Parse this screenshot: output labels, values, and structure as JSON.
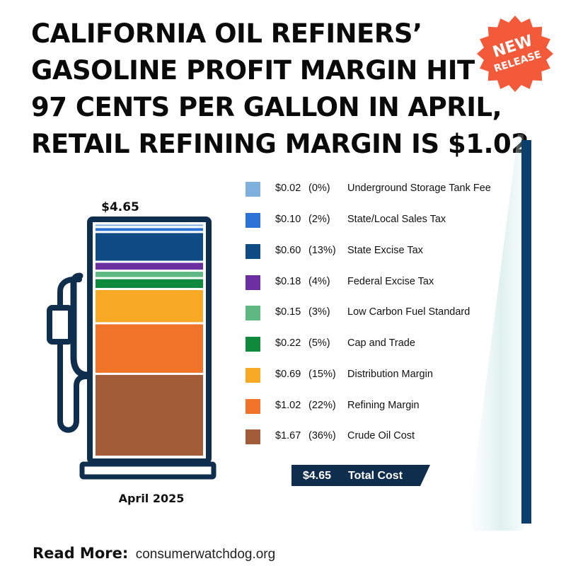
{
  "title_lines": [
    "CALIFORNIA OIL REFINERS’",
    "GASOLINE PROFIT MARGIN HIT",
    "97 CENTS PER GALLON IN APRIL,",
    "RETAIL REFINING MARGIN IS $1.02"
  ],
  "badge": {
    "line1": "NEW",
    "line2": "RELEASE",
    "color": "#f25a3a"
  },
  "colors": {
    "frame": "#0f2d4d",
    "accent_bar": "#0a3f6e",
    "total_bg": "#0f2d4d"
  },
  "chart_data": {
    "type": "bar",
    "stacked": true,
    "total_label": "$4.65",
    "category": "April 2025",
    "total": {
      "value": "$4.65",
      "label": "Total Cost"
    },
    "segments": [
      {
        "label": "Crude Oil Cost",
        "value": 1.67,
        "value_text": "$1.67",
        "pct": "(36%)",
        "color": "#a25c38"
      },
      {
        "label": "Refining Margin",
        "value": 1.02,
        "value_text": "$1.02",
        "pct": "(22%)",
        "color": "#f1732a"
      },
      {
        "label": "Distribution Margin",
        "value": 0.69,
        "value_text": "$0.69",
        "pct": "(15%)",
        "color": "#f7a825"
      },
      {
        "label": "Cap and Trade",
        "value": 0.22,
        "value_text": "$0.22",
        "pct": "(5%)",
        "color": "#0f8a3c"
      },
      {
        "label": "Low Carbon Fuel Standard",
        "value": 0.15,
        "value_text": "$0.15",
        "pct": "(3%)",
        "color": "#5db882"
      },
      {
        "label": "Federal Excise Tax",
        "value": 0.18,
        "value_text": "$0.18",
        "pct": "(4%)",
        "color": "#6b2fa0"
      },
      {
        "label": "State Excise Tax",
        "value": 0.6,
        "value_text": "$0.60",
        "pct": "(13%)",
        "color": "#0f4c85"
      },
      {
        "label": "State/Local Sales Tax",
        "value": 0.1,
        "value_text": "$0.10",
        "pct": "(2%)",
        "color": "#2a72d5"
      },
      {
        "label": "Underground Storage Tank Fee",
        "value": 0.02,
        "value_text": "$0.02",
        "pct": "(0%)",
        "color": "#7fb0dd"
      }
    ]
  },
  "footer": {
    "label": "Read More:",
    "url": "consumerwatchdog.org"
  }
}
